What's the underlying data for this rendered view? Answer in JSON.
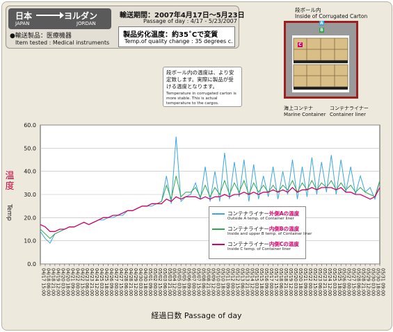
{
  "header": {
    "from_jp": "日本",
    "from_en": "JAPAN",
    "to_jp": "ヨルダン",
    "to_en": "JORDAN",
    "item_jp": "●輸送製品：医療機器",
    "item_en": "Item tested : Medical instruments",
    "period_jp": "輸送期間：2007年4月17日〜5月23日",
    "period_en": "Passage of day : 4/17 - 5/23/2007",
    "quality_jp": "製品劣化温度：約35˚Cで変質",
    "quality_en": "Temp.of quality change : 35 degrees c."
  },
  "note": {
    "jp": "段ボール内の温度は、より安定致します。実際に製品が受ける温度となります。",
    "en": "Temperature in corrugated carton is more stable. This is actual temperature to the cargos."
  },
  "diagram": {
    "carton_jp": "段ボール内",
    "carton_en": "Inside of Corrugated Carton",
    "marine_jp": "海上コンテナ",
    "marine_en": "Marine Container",
    "liner_jp": "コンテナライナー",
    "liner_en": "Container liner",
    "label_a": "A",
    "label_b": "B",
    "label_c": "C"
  },
  "axes": {
    "ylabel_jp": "温度",
    "ylabel_en": "Temp",
    "xlabel": "経過日数  Passage of day"
  },
  "legend": {
    "a_jp_pre": "コンテナライナー",
    "a_jp_hl": "外側Aの温度",
    "a_en": "Outside A temp. of Container liner",
    "b_jp_pre": "コンテナライナー",
    "b_jp_hl": "内側Bの温度",
    "b_en": "Inside and upper B temp. of Container liner",
    "c_jp_pre": "コンテナライナー",
    "c_jp_hl": "内側Cの温度",
    "c_en": "Inside C temp. of Container liner"
  },
  "colors": {
    "series_a": "#3aa8e0",
    "series_b": "#2fa84a",
    "series_c": "#d4006a",
    "axis_title_jp": "#c4003a",
    "container_border": "#9e1f1f"
  },
  "chart_data": {
    "type": "line",
    "ylim": [
      0,
      60
    ],
    "yticks": [
      "0.0",
      "10.0",
      "20.0",
      "30.0",
      "40.0",
      "50.0",
      "60.0"
    ],
    "grid": true,
    "legend_position": "bottom-right",
    "categories": [
      "04/17 15:00",
      "04/18 06:00",
      "04/18 21:00",
      "04/19 12:00",
      "04/20 03:00",
      "04/20 18:00",
      "04/21 09:00",
      "04/22 00:00",
      "04/22 15:00",
      "04/23 06:00",
      "04/23 21:00",
      "04/24 12:00",
      "04/25 03:00",
      "04/25 18:00",
      "04/26 09:00",
      "04/27 00:00",
      "04/27 15:00",
      "04/28 06:00",
      "04/28 21:00",
      "04/29 12:00",
      "04/30 03:00",
      "04/30 18:00",
      "05/01 09:00",
      "05/02 00:00",
      "05/02 15:00",
      "05/03 06:00",
      "05/03 21:00",
      "05/04 12:00",
      "05/05 03:00",
      "05/05 18:00",
      "05/06 09:00",
      "05/07 00:00",
      "05/07 15:00",
      "05/08 06:00",
      "05/08 21:00",
      "05/09 12:00",
      "05/10 03:00",
      "05/10 18:00",
      "05/11 09:00",
      "05/12 00:00",
      "05/12 15:00",
      "05/13 06:00",
      "05/13 21:00",
      "05/14 12:00",
      "05/15 03:00",
      "05/15 18:00",
      "05/16 09:00",
      "05/17 00:00",
      "05/17 15:00",
      "05/18 06:00",
      "05/18 21:00",
      "05/19 12:00",
      "05/20 03:00",
      "05/20 18:00",
      "05/21 09:00",
      "05/22 00:00",
      "05/22 15:00",
      "05/23 06:00",
      "05/23 21:00",
      "05/24 12:00",
      "05/25 03:00",
      "05/25 18:00",
      "05/26 09:00",
      "05/27 00:00",
      "05/27 15:00",
      "05/28 06:00",
      "05/28 21:00",
      "05/29 12:00",
      "05/30 03:00",
      "05/30 18:00",
      "05/31 09:00"
    ],
    "series": [
      {
        "name": "コンテナライナー外側Aの温度",
        "values": [
          14,
          11,
          9,
          13,
          14,
          15,
          16,
          16,
          17,
          18,
          17,
          18,
          19,
          19,
          20,
          20,
          21,
          21,
          23,
          23,
          24,
          25,
          25,
          25,
          26,
          27,
          38,
          26,
          55,
          27,
          29,
          30,
          35,
          28,
          42,
          27,
          40,
          27,
          48,
          28,
          44,
          29,
          45,
          27,
          43,
          28,
          38,
          29,
          42,
          28,
          40,
          30,
          45,
          28,
          42,
          29,
          46,
          30,
          44,
          31,
          47,
          30,
          45,
          31,
          42,
          30,
          38,
          31,
          33,
          28,
          36
        ]
      },
      {
        "name": "コンテナライナー内側Bの温度",
        "values": [
          15,
          13,
          11,
          13,
          14,
          15,
          16,
          16,
          17,
          18,
          17,
          18,
          19,
          20,
          20,
          21,
          21,
          22,
          23,
          23,
          24,
          25,
          25,
          26,
          26,
          27,
          34,
          28,
          38,
          29,
          31,
          31,
          33,
          29,
          34,
          29,
          33,
          30,
          36,
          30,
          35,
          31,
          36,
          30,
          35,
          31,
          34,
          31,
          34,
          31,
          34,
          32,
          36,
          31,
          35,
          32,
          36,
          32,
          35,
          33,
          36,
          32,
          35,
          32,
          34,
          31,
          33,
          31,
          30,
          29,
          36
        ]
      },
      {
        "name": "コンテナライナー内側Cの温度",
        "values": [
          17,
          16,
          14,
          14,
          15,
          15,
          16,
          16,
          17,
          18,
          17,
          18,
          19,
          20,
          20,
          21,
          21,
          22,
          23,
          23,
          24,
          25,
          25,
          26,
          26,
          26,
          28,
          27,
          29,
          28,
          29,
          29,
          29,
          28,
          29,
          28,
          29,
          29,
          30,
          29,
          30,
          30,
          31,
          30,
          31,
          30,
          31,
          31,
          32,
          31,
          32,
          31,
          33,
          31,
          32,
          32,
          33,
          32,
          33,
          33,
          33,
          32,
          33,
          31,
          31,
          30,
          30,
          29,
          28,
          29,
          33
        ]
      }
    ]
  }
}
